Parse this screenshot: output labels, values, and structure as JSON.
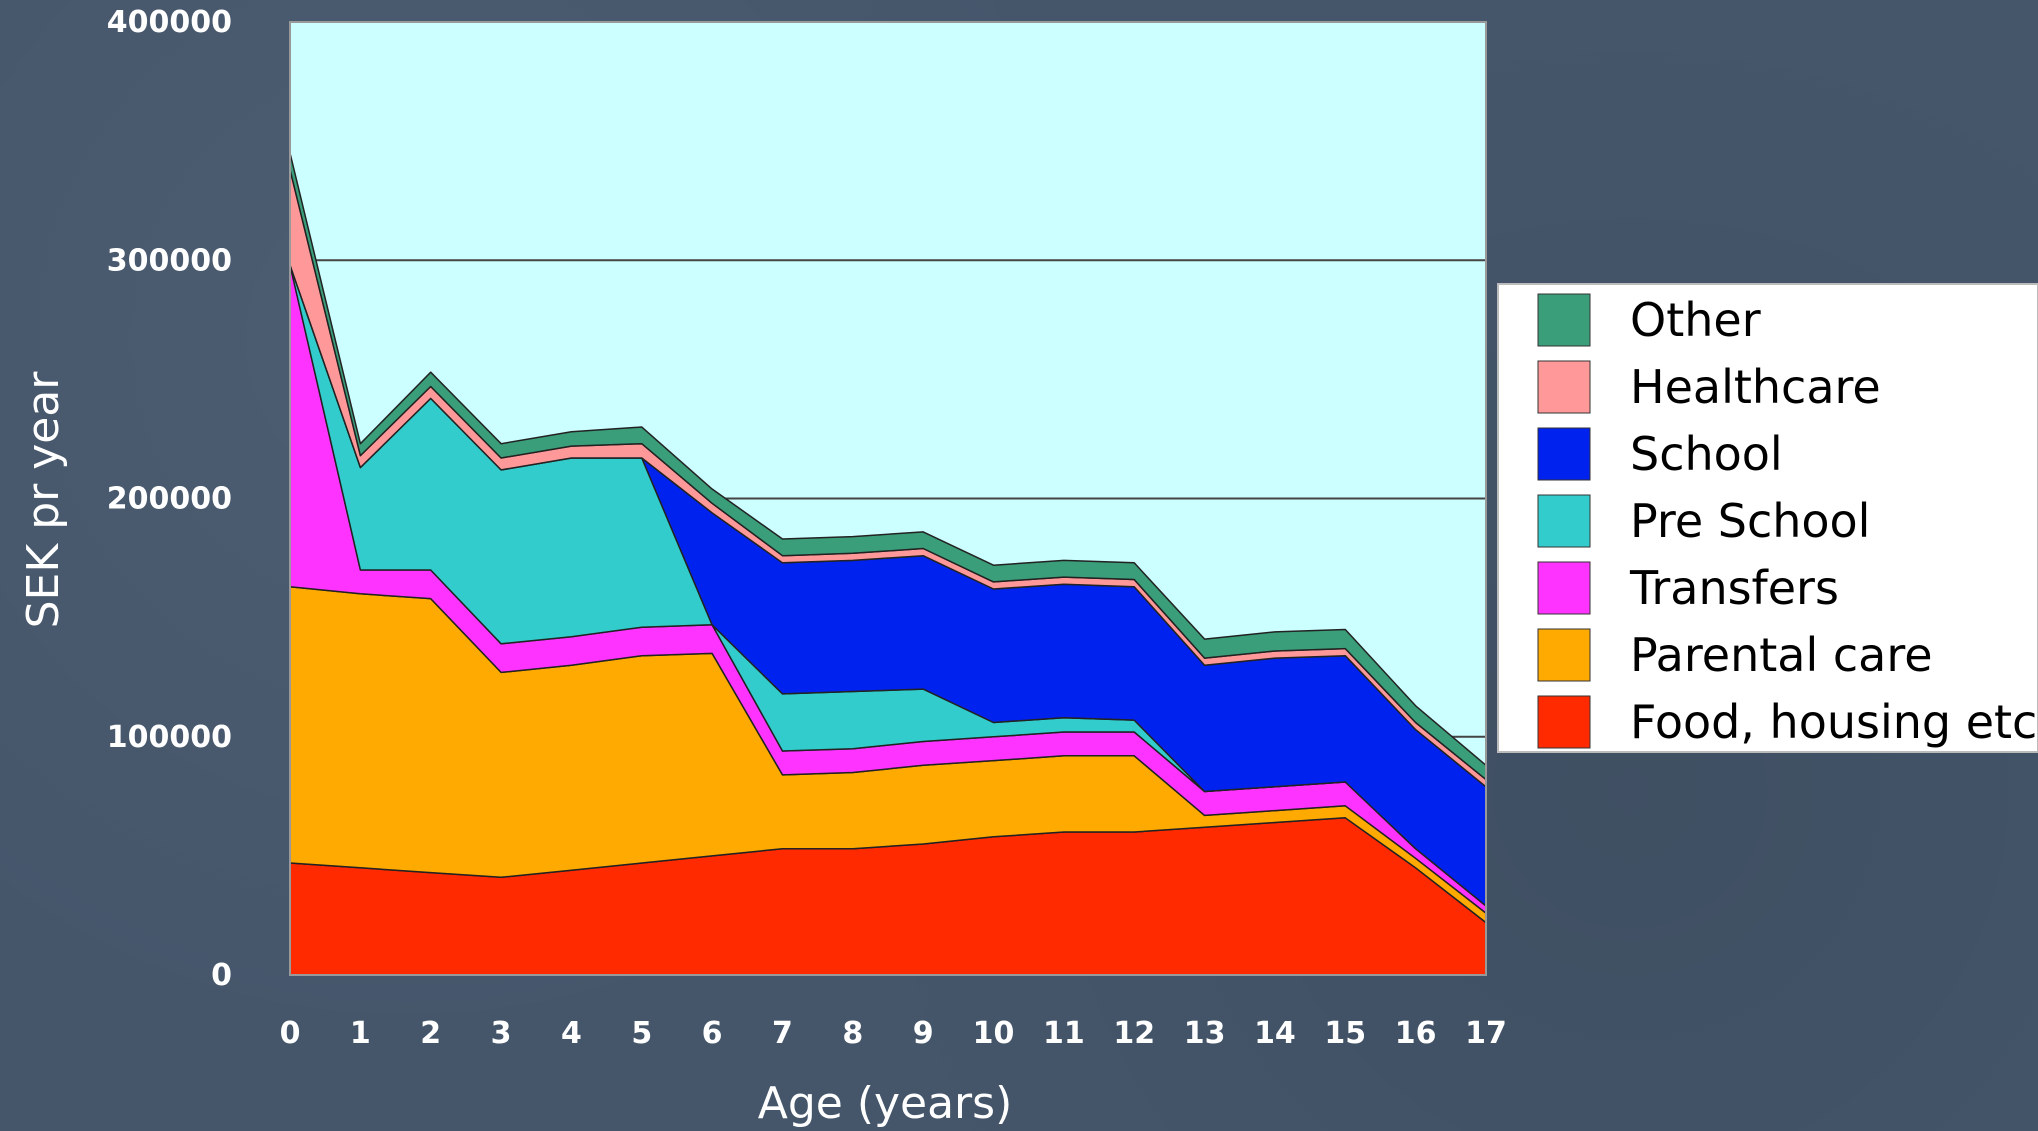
{
  "chart_data": {
    "type": "area",
    "stacked": true,
    "x": [
      0,
      1,
      2,
      3,
      4,
      5,
      6,
      7,
      8,
      9,
      10,
      11,
      12,
      13,
      14,
      15,
      16,
      17
    ],
    "xlabel": "Age (years)",
    "ylabel": "SEK pr year",
    "ylim": [
      0,
      400000
    ],
    "yticks": [
      0,
      100000,
      200000,
      300000,
      400000
    ],
    "grid": true,
    "legend_position": "right",
    "plot_background": "#ccffff",
    "series": [
      {
        "name": "Food, housing etc.",
        "color": "#ff2a00",
        "values": [
          47000,
          45000,
          43000,
          41000,
          44000,
          47000,
          50000,
          53000,
          53000,
          55000,
          58000,
          60000,
          60000,
          62000,
          64000,
          66000,
          45000,
          22000
        ]
      },
      {
        "name": "Parental care",
        "color": "#ffaa00",
        "values": [
          116000,
          115000,
          115000,
          86000,
          86000,
          87000,
          85000,
          31000,
          32000,
          33000,
          32000,
          32000,
          32000,
          5000,
          5000,
          5000,
          4000,
          4000
        ]
      },
      {
        "name": "Transfers",
        "color": "#ff33ff",
        "values": [
          135000,
          10000,
          12000,
          12000,
          12000,
          12000,
          12000,
          10000,
          10000,
          10000,
          10000,
          10000,
          10000,
          10000,
          10000,
          10000,
          4000,
          3000
        ]
      },
      {
        "name": "Pre School",
        "color": "#33cccc",
        "values": [
          0,
          43000,
          72000,
          73000,
          75000,
          71000,
          0,
          24000,
          24000,
          22000,
          6000,
          6000,
          5000,
          0,
          0,
          0,
          0,
          0
        ]
      },
      {
        "name": "School",
        "color": "#0022ee",
        "values": [
          0,
          0,
          0,
          0,
          0,
          0,
          47000,
          55000,
          55000,
          56000,
          56000,
          56000,
          56000,
          53000,
          54000,
          53000,
          50000,
          50000
        ]
      },
      {
        "name": "Healthcare",
        "color": "#ff9999",
        "values": [
          40000,
          5000,
          5000,
          5000,
          5000,
          6000,
          4000,
          3000,
          3000,
          3000,
          3000,
          3000,
          3000,
          3000,
          3000,
          3000,
          3000,
          3000
        ]
      },
      {
        "name": "Other",
        "color": "#3a9e7a",
        "values": [
          7000,
          5000,
          6000,
          6000,
          6000,
          7000,
          6000,
          7000,
          7000,
          7000,
          7000,
          7000,
          7000,
          8000,
          8000,
          8000,
          7000,
          6000
        ]
      }
    ],
    "legend_order": [
      "Other",
      "Healthcare",
      "School",
      "Pre School",
      "Transfers",
      "Parental care",
      "Food, housing etc."
    ]
  }
}
